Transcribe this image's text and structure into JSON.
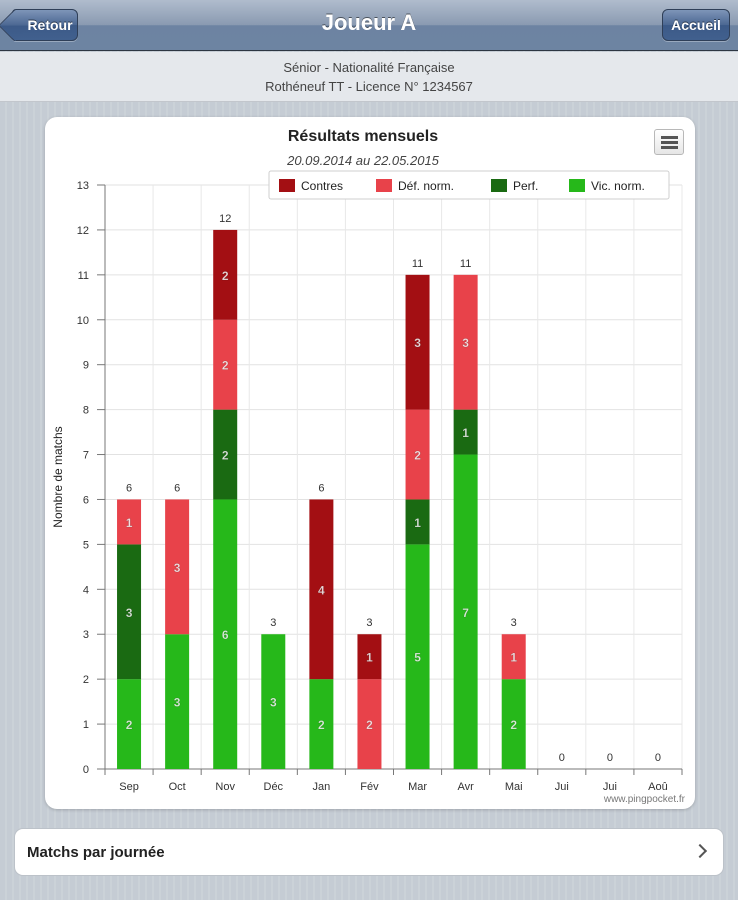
{
  "navbar": {
    "title": "Joueur A",
    "back_label": "Retour",
    "home_label": "Accueil"
  },
  "subheader": {
    "line1": "Sénior - Nationalité Française",
    "line2": "Rothéneuf TT - Licence N° 1234567"
  },
  "list": {
    "item_label": "Matchs par journée",
    "icon": "chevron-right-icon"
  },
  "chart_menu_icon": "hamburger-menu-icon",
  "chart_data": {
    "type": "bar",
    "stacked": true,
    "title": "Résultats mensuels",
    "subtitle": "20.09.2014 au 22.05.2015",
    "ylabel": "Nombre de matchs",
    "xlabel": "",
    "ylim": [
      0,
      13
    ],
    "yticks": [
      0,
      1,
      2,
      3,
      4,
      5,
      6,
      7,
      8,
      9,
      10,
      11,
      12,
      13
    ],
    "grid": true,
    "legend_position": "top-right",
    "credits": "www.pingpocket.fr",
    "categories": [
      "Sep",
      "Oct",
      "Nov",
      "Déc",
      "Jan",
      "Fév",
      "Mar",
      "Avr",
      "Mai",
      "Jui",
      "Jui",
      "Aoû"
    ],
    "totals": [
      6,
      6,
      12,
      3,
      6,
      3,
      11,
      11,
      3,
      0,
      0,
      0
    ],
    "series": [
      {
        "name": "Contres",
        "color": "#a30f13",
        "values": [
          0,
          0,
          2,
          0,
          4,
          1,
          3,
          0,
          0,
          0,
          0,
          0
        ]
      },
      {
        "name": "Déf. norm.",
        "color": "#e8424a",
        "values": [
          1,
          3,
          2,
          0,
          0,
          2,
          2,
          3,
          1,
          0,
          0,
          0
        ]
      },
      {
        "name": "Perf.",
        "color": "#1a6a12",
        "values": [
          3,
          0,
          2,
          0,
          0,
          0,
          1,
          1,
          0,
          0,
          0,
          0
        ]
      },
      {
        "name": "Vic. norm.",
        "color": "#26b81a",
        "values": [
          2,
          3,
          6,
          3,
          2,
          0,
          5,
          7,
          2,
          0,
          0,
          0
        ]
      }
    ]
  }
}
